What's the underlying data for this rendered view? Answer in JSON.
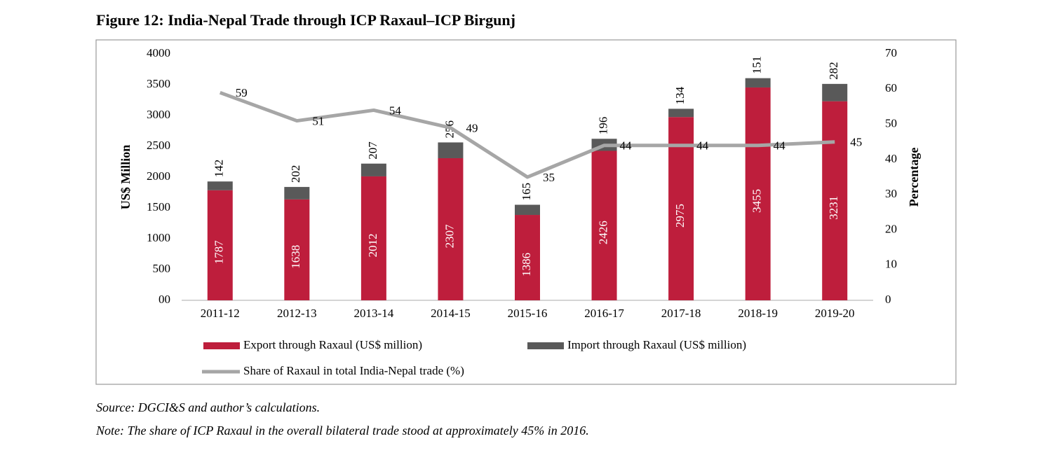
{
  "chart_data": {
    "type": "bar",
    "title": "Figure 12: India-Nepal Trade through ICP Raxaul–ICP Birgunj",
    "ylabel": "US$ Million",
    "y2label": "Percentage",
    "categories": [
      "2011-12",
      "2012-13",
      "2013-14",
      "2014-15",
      "2015-16",
      "2016-17",
      "2017-18",
      "2018-19",
      "2019-20"
    ],
    "stacked": true,
    "series": [
      {
        "name": "Export through Raxaul (US$ million)",
        "color": "#be1e3c",
        "values": [
          1787,
          1638,
          2012,
          2307,
          1386,
          2426,
          2975,
          3455,
          3231
        ]
      },
      {
        "name": "Import through Raxaul (US$ million)",
        "color": "#595959",
        "values": [
          142,
          202,
          207,
          256,
          165,
          196,
          134,
          151,
          282
        ]
      },
      {
        "name": "Share of Raxaul in total India-Nepal trade (%)",
        "type": "line",
        "axis": "y2",
        "color": "#a6a6a6",
        "values": [
          59,
          51,
          54,
          49,
          35,
          44,
          44,
          44,
          45
        ]
      }
    ],
    "ylim": [
      0,
      4000
    ],
    "yticks": [
      {
        "value": 0,
        "label": "00"
      },
      500,
      1000,
      1500,
      2000,
      2500,
      3000,
      3500,
      4000
    ],
    "y2lim": [
      0,
      70
    ],
    "y2ticks": [
      0,
      10,
      20,
      30,
      40,
      50,
      60,
      70
    ],
    "grid": false,
    "legend": "bottom",
    "source": "Source: DGCI&S and author’s calculations.",
    "note": "Note: The share of ICP Raxaul in the overall bilateral trade stood at approximately 45% in 2016."
  }
}
